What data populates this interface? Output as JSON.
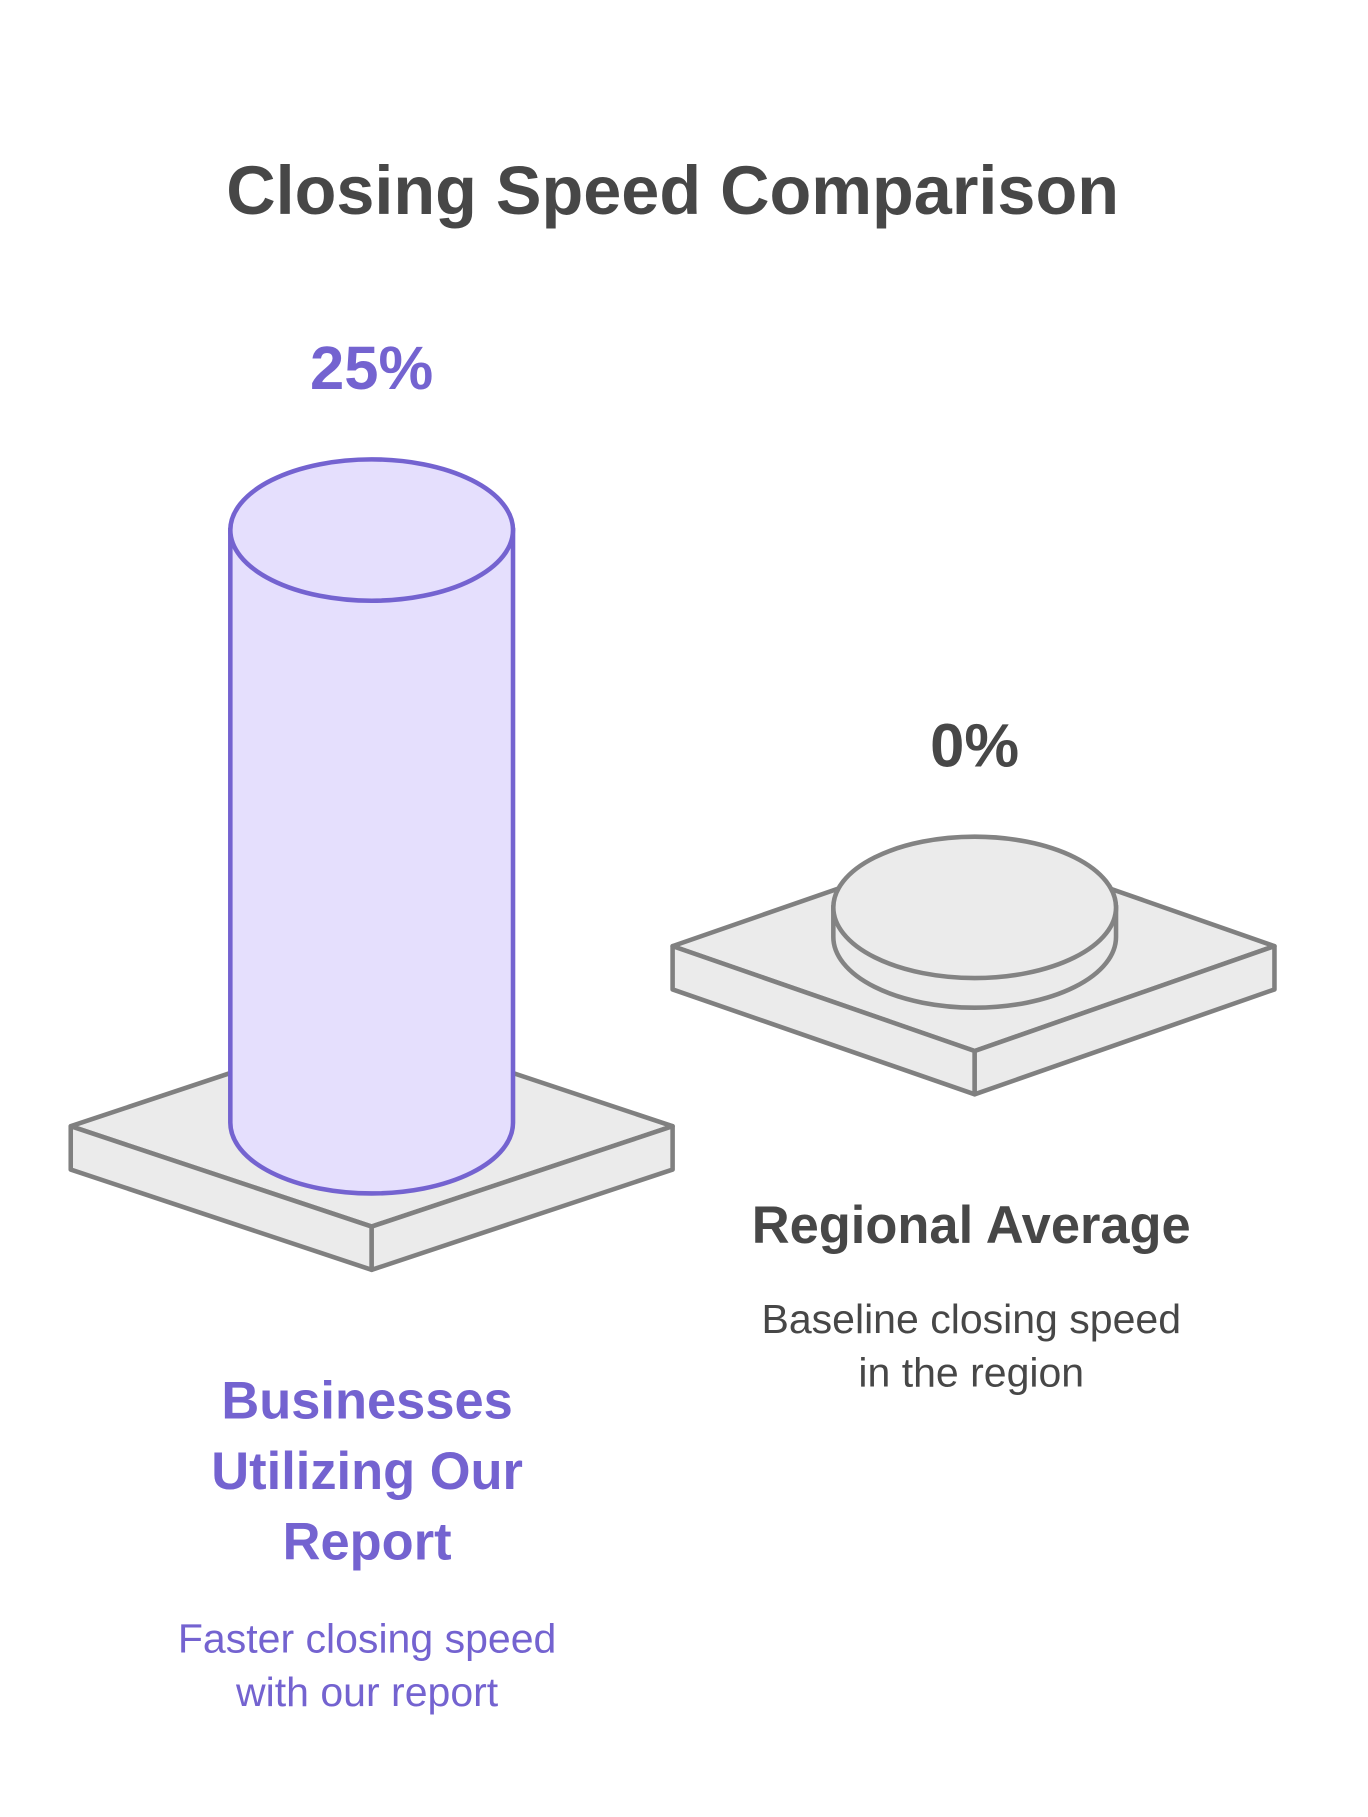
{
  "chart_data": {
    "type": "bar",
    "title": "Closing Speed Comparison",
    "categories": [
      "Businesses Utilizing Our Report",
      "Regional Average"
    ],
    "values": [
      25,
      0
    ],
    "value_labels": [
      "25%",
      "0%"
    ],
    "descriptions": [
      [
        "Faster closing speed",
        "with our report"
      ],
      [
        "Baseline closing speed",
        "in the region"
      ]
    ],
    "colors": [
      "#7463d0",
      "#838383"
    ],
    "fills": [
      "#e5dffd",
      "#ebebeb"
    ]
  }
}
